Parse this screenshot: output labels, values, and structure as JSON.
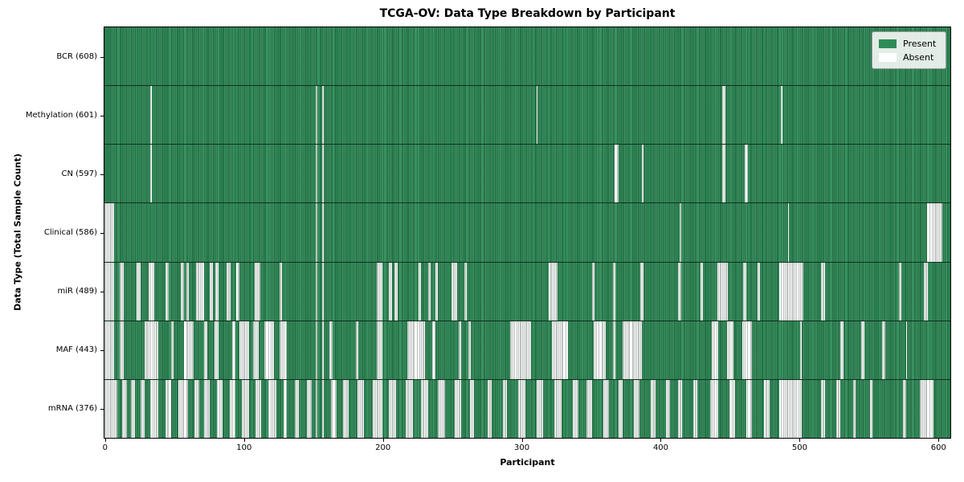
{
  "chart_data": {
    "type": "heatmap",
    "title": "TCGA-OV: Data Type Breakdown by Participant",
    "xlabel": "Participant",
    "ylabel": "Data Type (Total Sample Count)",
    "x_ticks": [
      0,
      100,
      200,
      300,
      400,
      500,
      600
    ],
    "x_range": [
      -0.5,
      608.5
    ],
    "n_participants": 608,
    "grid": false,
    "legend_position": "upper right",
    "legend_entries": [
      {
        "label": "Present",
        "swatch": "present"
      },
      {
        "label": "Absent",
        "swatch": "absent"
      }
    ],
    "colors": {
      "present": "#2e8b57",
      "absent": "#fdfdfd",
      "bar_edge": "rgba(12,38,24,0.55)",
      "axis": "#000000",
      "legend_bg": "rgba(252,252,252,0.88)",
      "legend_border": "#9a9a9a"
    },
    "value_encoding": {
      "present": 1,
      "absent": 0
    },
    "rows": [
      {
        "name": "BCR",
        "label": "BCR (608)",
        "present_count": 608,
        "absent_count": 0,
        "absent_ranges": []
      },
      {
        "name": "Methylation",
        "label": "Methylation (601)",
        "present_count": 601,
        "absent_count": 7,
        "absent_ranges": [
          [
            33,
            33
          ],
          [
            152,
            152
          ],
          [
            157,
            157
          ],
          [
            311,
            311
          ],
          [
            445,
            446
          ],
          [
            487,
            487
          ]
        ]
      },
      {
        "name": "CN",
        "label": "CN (597)",
        "present_count": 597,
        "absent_count": 11,
        "absent_ranges": [
          [
            33,
            33
          ],
          [
            152,
            152
          ],
          [
            157,
            157
          ],
          [
            367,
            369
          ],
          [
            387,
            387
          ],
          [
            445,
            446
          ],
          [
            461,
            462
          ]
        ]
      },
      {
        "name": "Clinical",
        "label": "Clinical (586)",
        "present_count": 586,
        "absent_count": 22,
        "absent_ranges": [
          [
            0,
            6
          ],
          [
            152,
            152
          ],
          [
            157,
            157
          ],
          [
            414,
            414
          ],
          [
            492,
            492
          ],
          [
            592,
            602
          ]
        ]
      },
      {
        "name": "miR",
        "label": "miR (489)",
        "present_count": 489,
        "absent_count": 119,
        "absent_ranges": [
          [
            0,
            6
          ],
          [
            11,
            13
          ],
          [
            23,
            25
          ],
          [
            32,
            35
          ],
          [
            44,
            45
          ],
          [
            55,
            56
          ],
          [
            59,
            60
          ],
          [
            66,
            71
          ],
          [
            76,
            77
          ],
          [
            80,
            81
          ],
          [
            88,
            90
          ],
          [
            95,
            96
          ],
          [
            108,
            111
          ],
          [
            126,
            127
          ],
          [
            152,
            152
          ],
          [
            157,
            157
          ],
          [
            196,
            199
          ],
          [
            205,
            206
          ],
          [
            209,
            210
          ],
          [
            226,
            227
          ],
          [
            233,
            234
          ],
          [
            238,
            239
          ],
          [
            250,
            253
          ],
          [
            259,
            260
          ],
          [
            320,
            325
          ],
          [
            351,
            352
          ],
          [
            366,
            367
          ],
          [
            386,
            387
          ],
          [
            413,
            414
          ],
          [
            429,
            430
          ],
          [
            441,
            448
          ],
          [
            460,
            461
          ],
          [
            470,
            471
          ],
          [
            486,
            502
          ],
          [
            516,
            518
          ],
          [
            572,
            573
          ],
          [
            590,
            592
          ]
        ]
      },
      {
        "name": "MAF",
        "label": "MAF (443)",
        "present_count": 443,
        "absent_count": 165,
        "absent_ranges": [
          [
            0,
            6
          ],
          [
            11,
            13
          ],
          [
            29,
            38
          ],
          [
            48,
            49
          ],
          [
            57,
            63
          ],
          [
            72,
            73
          ],
          [
            79,
            81
          ],
          [
            92,
            93
          ],
          [
            97,
            103
          ],
          [
            107,
            110
          ],
          [
            115,
            121
          ],
          [
            126,
            130
          ],
          [
            152,
            152
          ],
          [
            157,
            157
          ],
          [
            162,
            163
          ],
          [
            181,
            182
          ],
          [
            196,
            199
          ],
          [
            218,
            230
          ],
          [
            236,
            237
          ],
          [
            255,
            256
          ],
          [
            262,
            263
          ],
          [
            292,
            306
          ],
          [
            322,
            333
          ],
          [
            352,
            360
          ],
          [
            366,
            367
          ],
          [
            373,
            386
          ],
          [
            437,
            441
          ],
          [
            448,
            452
          ],
          [
            459,
            465
          ],
          [
            501,
            501
          ],
          [
            530,
            531
          ],
          [
            545,
            546
          ],
          [
            560,
            561
          ],
          [
            577,
            577
          ]
        ]
      },
      {
        "name": "mRNA",
        "label": "mRNA (376)",
        "present_count": 376,
        "absent_count": 232,
        "absent_ranges": [
          [
            0,
            8
          ],
          [
            13,
            15
          ],
          [
            19,
            21
          ],
          [
            26,
            28
          ],
          [
            33,
            38
          ],
          [
            44,
            47
          ],
          [
            53,
            59
          ],
          [
            65,
            67
          ],
          [
            72,
            75
          ],
          [
            81,
            84
          ],
          [
            90,
            93
          ],
          [
            99,
            103
          ],
          [
            109,
            112
          ],
          [
            118,
            123
          ],
          [
            129,
            130
          ],
          [
            137,
            139
          ],
          [
            146,
            148
          ],
          [
            152,
            152
          ],
          [
            157,
            157
          ],
          [
            163,
            166
          ],
          [
            172,
            175
          ],
          [
            182,
            186
          ],
          [
            193,
            199
          ],
          [
            205,
            209
          ],
          [
            217,
            221
          ],
          [
            228,
            232
          ],
          [
            240,
            244
          ],
          [
            252,
            256
          ],
          [
            263,
            265
          ],
          [
            276,
            278
          ],
          [
            287,
            289
          ],
          [
            298,
            302
          ],
          [
            311,
            315
          ],
          [
            324,
            328
          ],
          [
            337,
            340
          ],
          [
            347,
            350
          ],
          [
            359,
            362
          ],
          [
            370,
            372
          ],
          [
            381,
            384
          ],
          [
            393,
            396
          ],
          [
            404,
            406
          ],
          [
            413,
            415
          ],
          [
            424,
            426
          ],
          [
            436,
            441
          ],
          [
            450,
            453
          ],
          [
            462,
            465
          ],
          [
            475,
            478
          ],
          [
            486,
            501
          ],
          [
            516,
            518
          ],
          [
            527,
            529
          ],
          [
            539,
            540
          ],
          [
            551,
            552
          ],
          [
            575,
            576
          ],
          [
            587,
            596
          ]
        ]
      }
    ]
  }
}
